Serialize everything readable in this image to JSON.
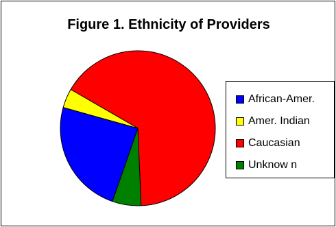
{
  "chart_data": {
    "type": "pie",
    "title": "Figure 1. Ethnicity of Providers",
    "legend_position": "right",
    "slices": [
      {
        "label": "Caucasian",
        "value": 66,
        "color": "#ff0000"
      },
      {
        "label": "Unknow n",
        "value": 6,
        "color": "#008000"
      },
      {
        "label": "African-Amer.",
        "value": 24,
        "color": "#0000ff"
      },
      {
        "label": "Amer. Indian",
        "value": 4,
        "color": "#ffff00"
      }
    ],
    "legend": [
      {
        "label": "African-Amer.",
        "color": "#0000ff"
      },
      {
        "label": "Amer. Indian",
        "color": "#ffff00"
      },
      {
        "label": "Caucasian",
        "color": "#ff0000"
      },
      {
        "label": "Unknow n",
        "color": "#008000"
      }
    ]
  }
}
